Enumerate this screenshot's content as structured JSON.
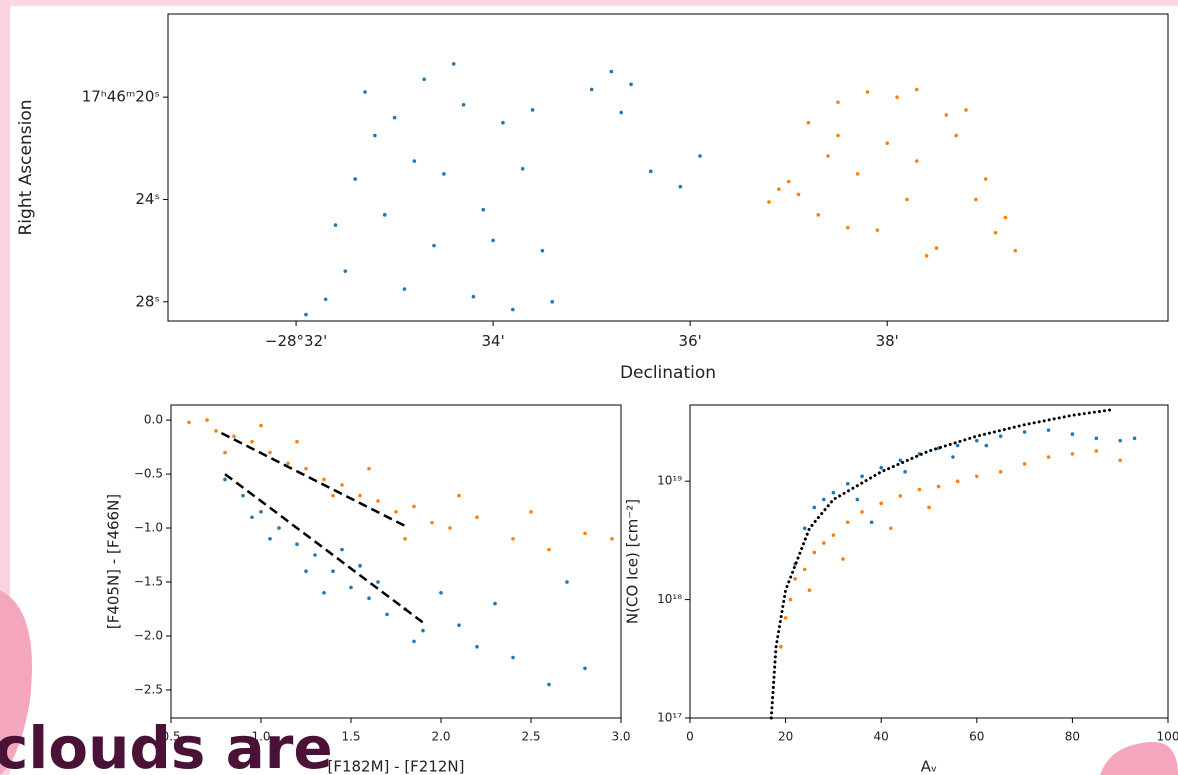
{
  "slide_text": "clouds are",
  "chart_data": [
    {
      "type": "scatter",
      "xlabel": "Declination",
      "ylabel": "Right Ascension",
      "xlim": [
        30.7,
        40.85
      ],
      "ylim": [
        28.75,
        16.75
      ],
      "xticks": [
        {
          "value": 32,
          "label": "−28°32'"
        },
        {
          "value": 34,
          "label": "34'"
        },
        {
          "value": 36,
          "label": "36'"
        },
        {
          "value": 38,
          "label": "38'"
        }
      ],
      "yticks": [
        {
          "value": 20,
          "label": "17ʰ46ᵐ20ˢ"
        },
        {
          "value": 24,
          "label": "24ˢ"
        },
        {
          "value": 28,
          "label": "28ˢ"
        }
      ],
      "series": [
        {
          "type": "scatter",
          "color": "#1f77b4",
          "x": [
            32.1,
            32.3,
            32.5,
            32.4,
            32.6,
            32.8,
            33.0,
            33.2,
            33.4,
            33.6,
            33.7,
            33.9,
            34.1,
            34.3,
            34.5,
            34.6,
            32.7,
            33.1,
            33.5,
            33.8,
            34.0,
            34.4,
            33.3,
            32.9,
            34.2,
            35.0,
            35.3,
            35.4,
            35.6,
            35.9,
            36.1,
            35.2
          ],
          "y": [
            28.5,
            27.9,
            26.8,
            25.0,
            23.2,
            21.5,
            20.8,
            22.5,
            25.8,
            18.7,
            20.3,
            24.4,
            21.0,
            22.8,
            26.0,
            28.0,
            19.8,
            27.5,
            23.0,
            27.8,
            25.6,
            20.5,
            19.3,
            24.6,
            28.3,
            19.7,
            20.6,
            19.5,
            22.9,
            23.5,
            22.3,
            19.0
          ]
        },
        {
          "type": "scatter",
          "color": "#ff7f0e",
          "x": [
            36.8,
            37.0,
            37.2,
            37.3,
            37.5,
            37.7,
            37.9,
            38.1,
            38.3,
            38.5,
            38.7,
            38.9,
            39.1,
            39.3,
            37.4,
            37.8,
            38.2,
            38.6,
            39.0,
            37.1,
            37.6,
            38.0,
            38.4,
            38.8,
            39.2,
            36.9,
            37.5,
            38.3
          ],
          "y": [
            24.1,
            23.3,
            21.0,
            24.6,
            20.2,
            23.0,
            25.2,
            20.0,
            22.5,
            25.9,
            21.5,
            24.0,
            25.3,
            26.0,
            22.3,
            19.8,
            24.0,
            20.7,
            23.2,
            23.8,
            25.1,
            21.8,
            26.2,
            20.5,
            24.7,
            23.6,
            21.5,
            19.7
          ]
        }
      ]
    },
    {
      "type": "scatter",
      "xlabel": "[F182M] - [F212N]",
      "ylabel": "[F405N] - [F466N]",
      "xlim": [
        0.5,
        3.0
      ],
      "ylim": [
        -2.76,
        0.14
      ],
      "xticks": [
        0.5,
        {
          "value": 1,
          "label": "1.0"
        },
        1.5,
        {
          "value": 2,
          "label": "2.0"
        },
        2.5,
        {
          "value": 3,
          "label": "3.0"
        }
      ],
      "yticks": [
        {
          "value": 0,
          "label": "0.0"
        },
        {
          "value": -0.5,
          "label": "−0.5"
        },
        {
          "value": -1,
          "label": "−1.0"
        },
        {
          "value": -1.5,
          "label": "−1.5"
        },
        {
          "value": -2,
          "label": "−2.0"
        },
        {
          "value": -2.5,
          "label": "−2.5"
        }
      ],
      "series": [
        {
          "type": "scatter",
          "color": "#1f77b4",
          "x": [
            0.8,
            0.9,
            1.0,
            1.1,
            1.2,
            1.3,
            1.4,
            1.5,
            1.6,
            1.7,
            1.8,
            1.9,
            2.0,
            2.1,
            2.2,
            2.4,
            2.6,
            2.8,
            1.05,
            1.25,
            1.45,
            1.65,
            1.85,
            2.3,
            2.7,
            0.95,
            1.35,
            1.55
          ],
          "y": [
            -0.55,
            -0.7,
            -0.85,
            -1.0,
            -1.15,
            -1.25,
            -1.4,
            -1.55,
            -1.65,
            -1.8,
            -1.75,
            -1.95,
            -1.6,
            -1.9,
            -2.1,
            -2.2,
            -2.45,
            -2.3,
            -1.1,
            -1.4,
            -1.2,
            -1.5,
            -2.05,
            -1.7,
            -1.5,
            -0.9,
            -1.6,
            -1.35
          ]
        },
        {
          "type": "scatter",
          "color": "#ff7f0e",
          "x": [
            0.6,
            0.7,
            0.75,
            0.85,
            0.95,
            1.05,
            1.15,
            1.25,
            1.35,
            1.45,
            1.55,
            1.65,
            1.75,
            1.85,
            1.95,
            2.05,
            2.2,
            2.4,
            2.6,
            2.8,
            2.95,
            0.8,
            1.0,
            1.2,
            1.4,
            1.6,
            1.8,
            2.1,
            2.5
          ],
          "y": [
            -0.02,
            0.0,
            -0.1,
            -0.15,
            -0.2,
            -0.3,
            -0.4,
            -0.45,
            -0.55,
            -0.6,
            -0.7,
            -0.75,
            -0.85,
            -0.8,
            -0.95,
            -1.0,
            -0.9,
            -1.1,
            -1.2,
            -1.05,
            -1.1,
            -0.3,
            -0.05,
            -0.2,
            -0.7,
            -0.45,
            -1.1,
            -0.7,
            -0.85
          ]
        },
        {
          "type": "line",
          "style": "dashed",
          "color": "#000000",
          "x": [
            0.78,
            1.8
          ],
          "y": [
            -0.12,
            -0.98
          ]
        },
        {
          "type": "line",
          "style": "dashed",
          "color": "#000000",
          "x": [
            0.8,
            1.92
          ],
          "y": [
            -0.5,
            -1.9
          ]
        }
      ]
    },
    {
      "type": "scatter",
      "xlabel": "Aᵥ",
      "ylabel": "N(CO Ice) [cm⁻²]",
      "yscale": "log",
      "xlim": [
        0,
        100
      ],
      "ylim": [
        1e+17,
        4.4e+19
      ],
      "xticks": [
        0,
        20,
        40,
        60,
        80,
        100
      ],
      "yticks": [
        {
          "value": 1e+17,
          "label": "10¹⁷"
        },
        {
          "value": 1e+18,
          "label": "10¹⁸"
        },
        {
          "value": 1e+19,
          "label": "10¹⁹"
        }
      ],
      "series": [
        {
          "type": "scatter",
          "color": "#1f77b4",
          "x": [
            22,
            24,
            26,
            28,
            30,
            33,
            36,
            40,
            44,
            48,
            52,
            56,
            60,
            65,
            70,
            75,
            80,
            85,
            90,
            93,
            35,
            45,
            55,
            62,
            38
          ],
          "y": [
            2e+18,
            4e+18,
            6e+18,
            7e+18,
            8e+18,
            9.5e+18,
            1.1e+19,
            1.3e+19,
            1.5e+19,
            1.7e+19,
            1.9e+19,
            2e+19,
            2.2e+19,
            2.4e+19,
            2.6e+19,
            2.7e+19,
            2.5e+19,
            2.3e+19,
            2.2e+19,
            2.3e+19,
            7e+18,
            1.2e+19,
            1.6e+19,
            2e+19,
            4.5e+18
          ]
        },
        {
          "type": "scatter",
          "color": "#ff7f0e",
          "x": [
            19,
            20,
            21,
            22,
            24,
            26,
            28,
            30,
            33,
            36,
            40,
            44,
            48,
            52,
            56,
            60,
            65,
            70,
            75,
            80,
            85,
            90,
            25,
            32,
            42,
            50
          ],
          "y": [
            4e+17,
            7e+17,
            1e+18,
            1.5e+18,
            1.8e+18,
            2.5e+18,
            3e+18,
            3.5e+18,
            4.5e+18,
            5.5e+18,
            6.5e+18,
            7.5e+18,
            8.5e+18,
            9e+18,
            1e+19,
            1.1e+19,
            1.2e+19,
            1.4e+19,
            1.6e+19,
            1.7e+19,
            1.8e+19,
            1.5e+19,
            1.2e+18,
            2.2e+18,
            4e+18,
            6e+18
          ]
        },
        {
          "type": "line",
          "style": "dotted",
          "color": "#000000",
          "x": [
            17,
            18,
            20,
            25,
            30,
            40,
            50,
            60,
            70,
            80,
            88
          ],
          "y": [
            1e+17,
            4e+17,
            1.2e+18,
            4e+18,
            7e+18,
            1.2e+19,
            1.8e+19,
            2.4e+19,
            3e+19,
            3.6e+19,
            4e+19
          ]
        }
      ]
    }
  ]
}
